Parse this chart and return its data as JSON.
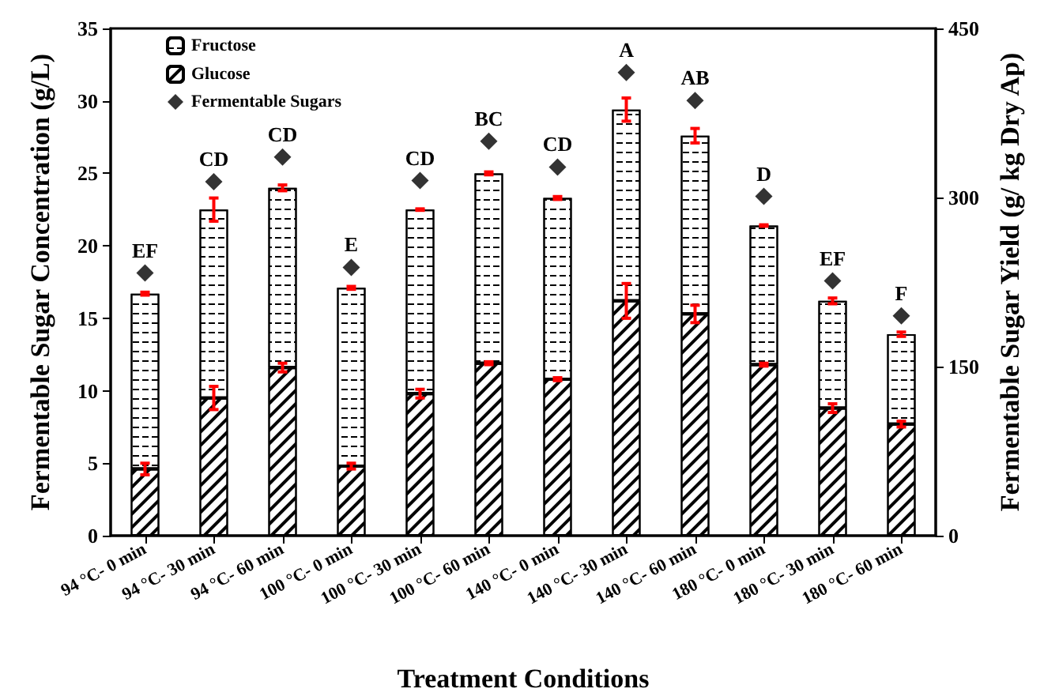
{
  "chart_data": {
    "type": "bar",
    "stacked": true,
    "xlabel": "Treatment Conditions",
    "ylabel": "Fermentable Sugar Concentration (g/L)",
    "y2label": "Fermentable Sugar Yield (g/ kg Dry Ap)",
    "categories": [
      "94 °C- 0 min",
      "94 °C- 30 min",
      "94 °C- 60 min",
      "100 °C- 0 min",
      "100 °C- 30 min",
      "100 °C- 60 min",
      "140 °C- 0 min",
      "140 °C- 30 min",
      "140 °C- 60 min",
      "180 °C- 0 min",
      "180 °C- 30 min",
      "180 °C- 60 min"
    ],
    "series": [
      {
        "name": "Glucose",
        "color": "#ffffff",
        "values": [
          4.6,
          9.5,
          11.6,
          4.8,
          9.8,
          11.9,
          10.8,
          16.2,
          15.3,
          11.8,
          8.8,
          7.7
        ],
        "errors": [
          0.4,
          0.8,
          0.3,
          0.2,
          0.3,
          0.1,
          0.1,
          1.2,
          0.6,
          0.1,
          0.3,
          0.2
        ]
      },
      {
        "name": "Fructose",
        "color": "#ffffff",
        "values": [
          12.1,
          13.0,
          12.4,
          12.3,
          12.7,
          13.1,
          12.5,
          13.2,
          12.3,
          9.6,
          7.4,
          6.2
        ],
        "errors": [
          0.1,
          0.8,
          0.2,
          0.1,
          0.05,
          0.1,
          0.1,
          0.8,
          0.5,
          0.05,
          0.2,
          0.15
        ]
      },
      {
        "name": "Fermentable Sugars",
        "type": "scatter",
        "axis": "y2",
        "marker": "diamond",
        "color": "#000000",
        "values": [
          233,
          314,
          336,
          238,
          315,
          350,
          327,
          411,
          386,
          301,
          226,
          195
        ]
      }
    ],
    "ylim": [
      0,
      35
    ],
    "yticks": [
      0,
      5,
      10,
      15,
      20,
      25,
      30,
      35
    ],
    "y2lim": [
      0,
      450
    ],
    "y2ticks": [
      0,
      150,
      300,
      450
    ],
    "annotations": [
      "EF",
      "CD",
      "CD",
      "E",
      "CD",
      "BC",
      "CD",
      "A",
      "AB",
      "D",
      "EF",
      "F"
    ],
    "legend": "top left",
    "grid": false
  }
}
